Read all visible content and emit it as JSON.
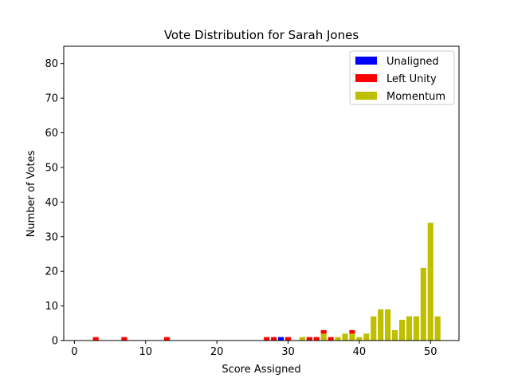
{
  "chart_data": {
    "type": "bar",
    "stacked": true,
    "title": "Vote Distribution for Sarah Jones",
    "xlabel": "Score Assigned",
    "ylabel": "Number of Votes",
    "xlim": [
      -1.5,
      54
    ],
    "ylim": [
      0,
      85
    ],
    "xticks": [
      0,
      10,
      20,
      30,
      40,
      50
    ],
    "yticks": [
      0,
      10,
      20,
      30,
      40,
      50,
      60,
      70,
      80
    ],
    "grid": false,
    "legend_position": "top-right",
    "stack_order": [
      "Momentum",
      "Left Unity",
      "Unaligned"
    ],
    "series": [
      {
        "name": "Unaligned",
        "color": "#0000ff",
        "points": [
          [
            29,
            1
          ]
        ]
      },
      {
        "name": "Left Unity",
        "color": "#ff0000",
        "points": [
          [
            3,
            1
          ],
          [
            7,
            1
          ],
          [
            13,
            1
          ],
          [
            27,
            1
          ],
          [
            28,
            1
          ],
          [
            30,
            1
          ],
          [
            33,
            1
          ],
          [
            34,
            1
          ],
          [
            35,
            1
          ],
          [
            36,
            1
          ],
          [
            39,
            1
          ]
        ]
      },
      {
        "name": "Momentum",
        "color": "#bfbf00",
        "points": [
          [
            32,
            1
          ],
          [
            35,
            2
          ],
          [
            37,
            1
          ],
          [
            38,
            2
          ],
          [
            39,
            2
          ],
          [
            40,
            1
          ],
          [
            41,
            2
          ],
          [
            42,
            7
          ],
          [
            43,
            9
          ],
          [
            44,
            9
          ],
          [
            45,
            3
          ],
          [
            46,
            6
          ],
          [
            47,
            7
          ],
          [
            48,
            7
          ],
          [
            49,
            21
          ],
          [
            50,
            34
          ],
          [
            51,
            7
          ]
        ]
      }
    ]
  }
}
